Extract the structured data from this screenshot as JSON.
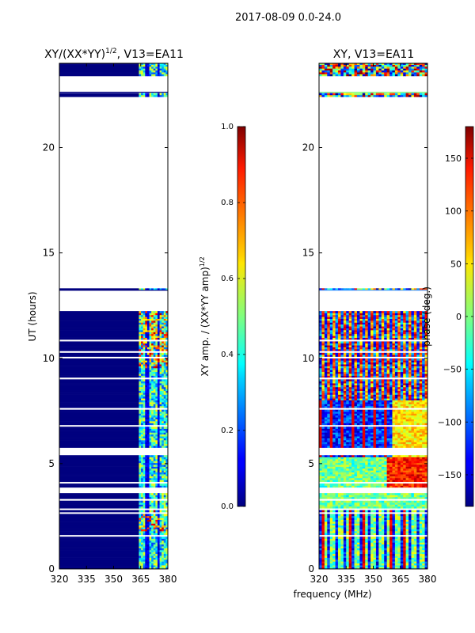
{
  "figure_title": "2017-08-09 0.0-24.0",
  "chart_data": [
    {
      "type": "heatmap",
      "title": "XY/(XX*YY)",
      "title_exponent": "1/2",
      "title_suffix": ", V13=EA11",
      "xlabel": "",
      "ylabel": "UT (hours)",
      "xlim": [
        320,
        380
      ],
      "ylim": [
        0,
        24
      ],
      "xticks": [
        "320",
        "335",
        "350",
        "365",
        "380"
      ],
      "yticks": [
        "0",
        "5",
        "10",
        "15",
        "20"
      ],
      "colorbar": {
        "label": "XY amp. / (XX*YY amp)",
        "label_exponent": "1/2",
        "range": [
          0.0,
          1.0
        ],
        "ticks": [
          "0.0",
          "0.2",
          "0.4",
          "0.6",
          "0.8",
          "1.0"
        ],
        "colormap": "jet"
      },
      "flagged_bands_hours": [
        [
          22.4,
          23.4
        ],
        [
          12.2,
          13.2
        ],
        [
          5.3,
          5.8
        ]
      ],
      "active_freq_range_mhz": [
        364,
        380
      ]
    },
    {
      "type": "heatmap",
      "title": "XY, V13=EA11",
      "xlabel": "frequency (MHz)",
      "ylabel": "",
      "xlim": [
        320,
        380
      ],
      "ylim": [
        0,
        24
      ],
      "xticks": [
        "320",
        "335",
        "350",
        "365",
        "380"
      ],
      "yticks": [
        "0",
        "5",
        "10",
        "15",
        "20"
      ],
      "colorbar": {
        "label": "phase (deg.)",
        "range": [
          -180,
          180
        ],
        "ticks": [
          "−150",
          "−100",
          "−50",
          "0",
          "50",
          "100",
          "150"
        ],
        "colormap": "jet"
      }
    }
  ]
}
